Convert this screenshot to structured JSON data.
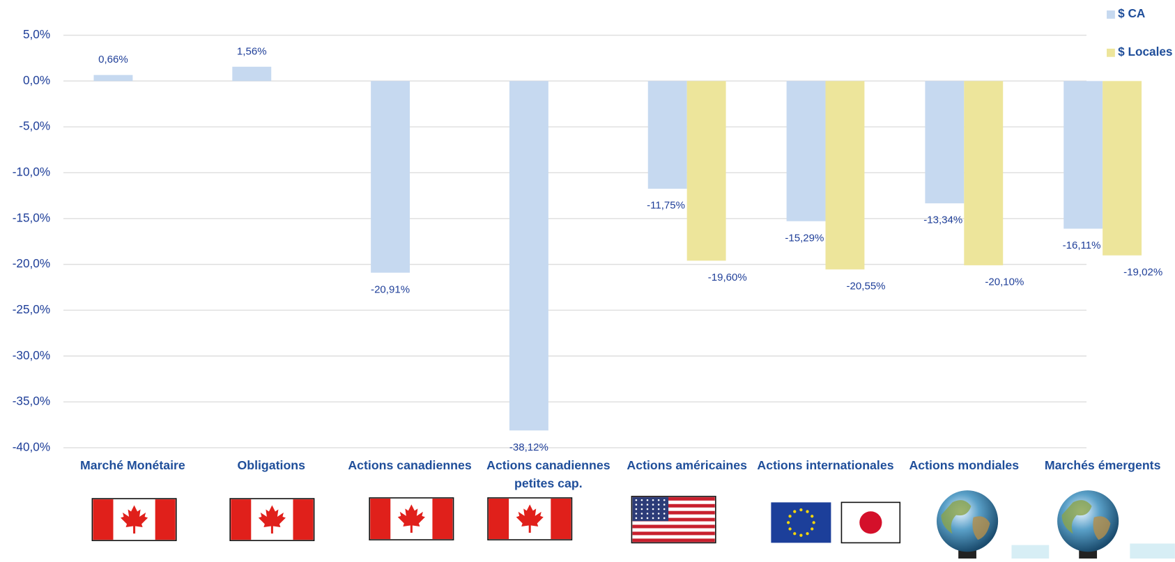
{
  "chart_data": {
    "type": "bar",
    "categories": [
      "Marché Monétaire",
      "Obligations",
      "Actions canadiennes",
      "Actions canadiennes petites cap.",
      "Actions américaines",
      "Actions internationales",
      "Actions mondiales",
      "Marchés émergents"
    ],
    "series": [
      {
        "name": "$ CA",
        "color": "#c6d9f0",
        "values": [
          0.66,
          1.56,
          -20.91,
          -38.12,
          -11.75,
          -15.29,
          -13.34,
          -16.11
        ],
        "value_labels": [
          "0,66%",
          "1,56%",
          "-20,91%",
          "-38,12%",
          "-11,75%",
          "-15,29%",
          "-13,34%",
          "-16,11%"
        ]
      },
      {
        "name": "$ Locales",
        "color": "#ede59b",
        "values": [
          null,
          null,
          null,
          null,
          -19.6,
          -20.55,
          -20.1,
          -19.02
        ],
        "value_labels": [
          null,
          null,
          null,
          null,
          "-19,60%",
          "-20,55%",
          "-20,10%",
          "-19,02%"
        ]
      }
    ],
    "ylim": [
      -40,
      5
    ],
    "yticks": [
      {
        "value": 5,
        "label": "5,0%"
      },
      {
        "value": 0,
        "label": "0,0%"
      },
      {
        "value": -5,
        "label": "-5,0%"
      },
      {
        "value": -10,
        "label": "-10,0%"
      },
      {
        "value": -15,
        "label": "-15,0%"
      },
      {
        "value": -20,
        "label": "-20,0%"
      },
      {
        "value": -25,
        "label": "-25,0%"
      },
      {
        "value": -30,
        "label": "-30,0%"
      },
      {
        "value": -35,
        "label": "-35,0%"
      },
      {
        "value": -40,
        "label": "-40,0%"
      }
    ],
    "grid": true,
    "legend": "top-right"
  }
}
